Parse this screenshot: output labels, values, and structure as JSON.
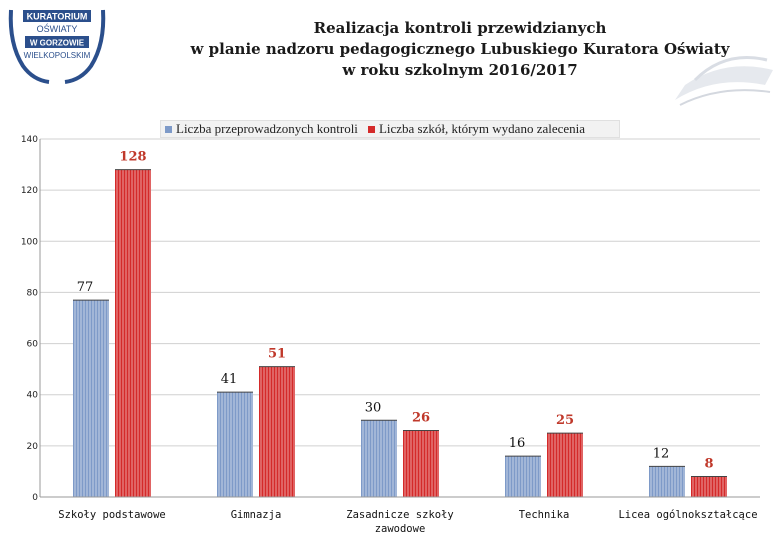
{
  "logo": {
    "line1": "KURATORIUM",
    "line2": "OŚWIATY",
    "line3": "W GORZOWIE",
    "line4": "WIELKOPOLSKIM"
  },
  "title": {
    "line1": "Realizacja kontroli przewidzianych",
    "line2": "w planie nadzoru pedagogicznego Lubuskiego Kuratora Oświaty",
    "line3": "w roku szkolnym 2016/2017"
  },
  "colors": {
    "series1": "#7e9ac8",
    "series2": "#d42a2a",
    "logo_blue": "#2b4f8c"
  },
  "chart_data": {
    "type": "bar",
    "categories": [
      "Szkoły podstawowe",
      "Gimnazja",
      "Zasadnicze szkoły zawodowe",
      "Technika",
      "Licea ogólnokształcące"
    ],
    "category_lines": [
      [
        "Szkoły podstawowe"
      ],
      [
        "Gimnazja"
      ],
      [
        "Zasadnicze szkoły",
        "zawodowe"
      ],
      [
        "Technika"
      ],
      [
        "Licea ogólnokształcące"
      ]
    ],
    "series": [
      {
        "name": "Liczba przeprowadzonych kontroli",
        "values": [
          77,
          41,
          30,
          16,
          12
        ]
      },
      {
        "name": "Liczba szkół, którym wydano zalecenia",
        "values": [
          128,
          51,
          26,
          25,
          8
        ]
      }
    ],
    "ylim": [
      0,
      140
    ],
    "yticks": [
      0,
      20,
      40,
      60,
      80,
      100,
      120,
      140
    ],
    "grid": true,
    "legend": "top"
  }
}
